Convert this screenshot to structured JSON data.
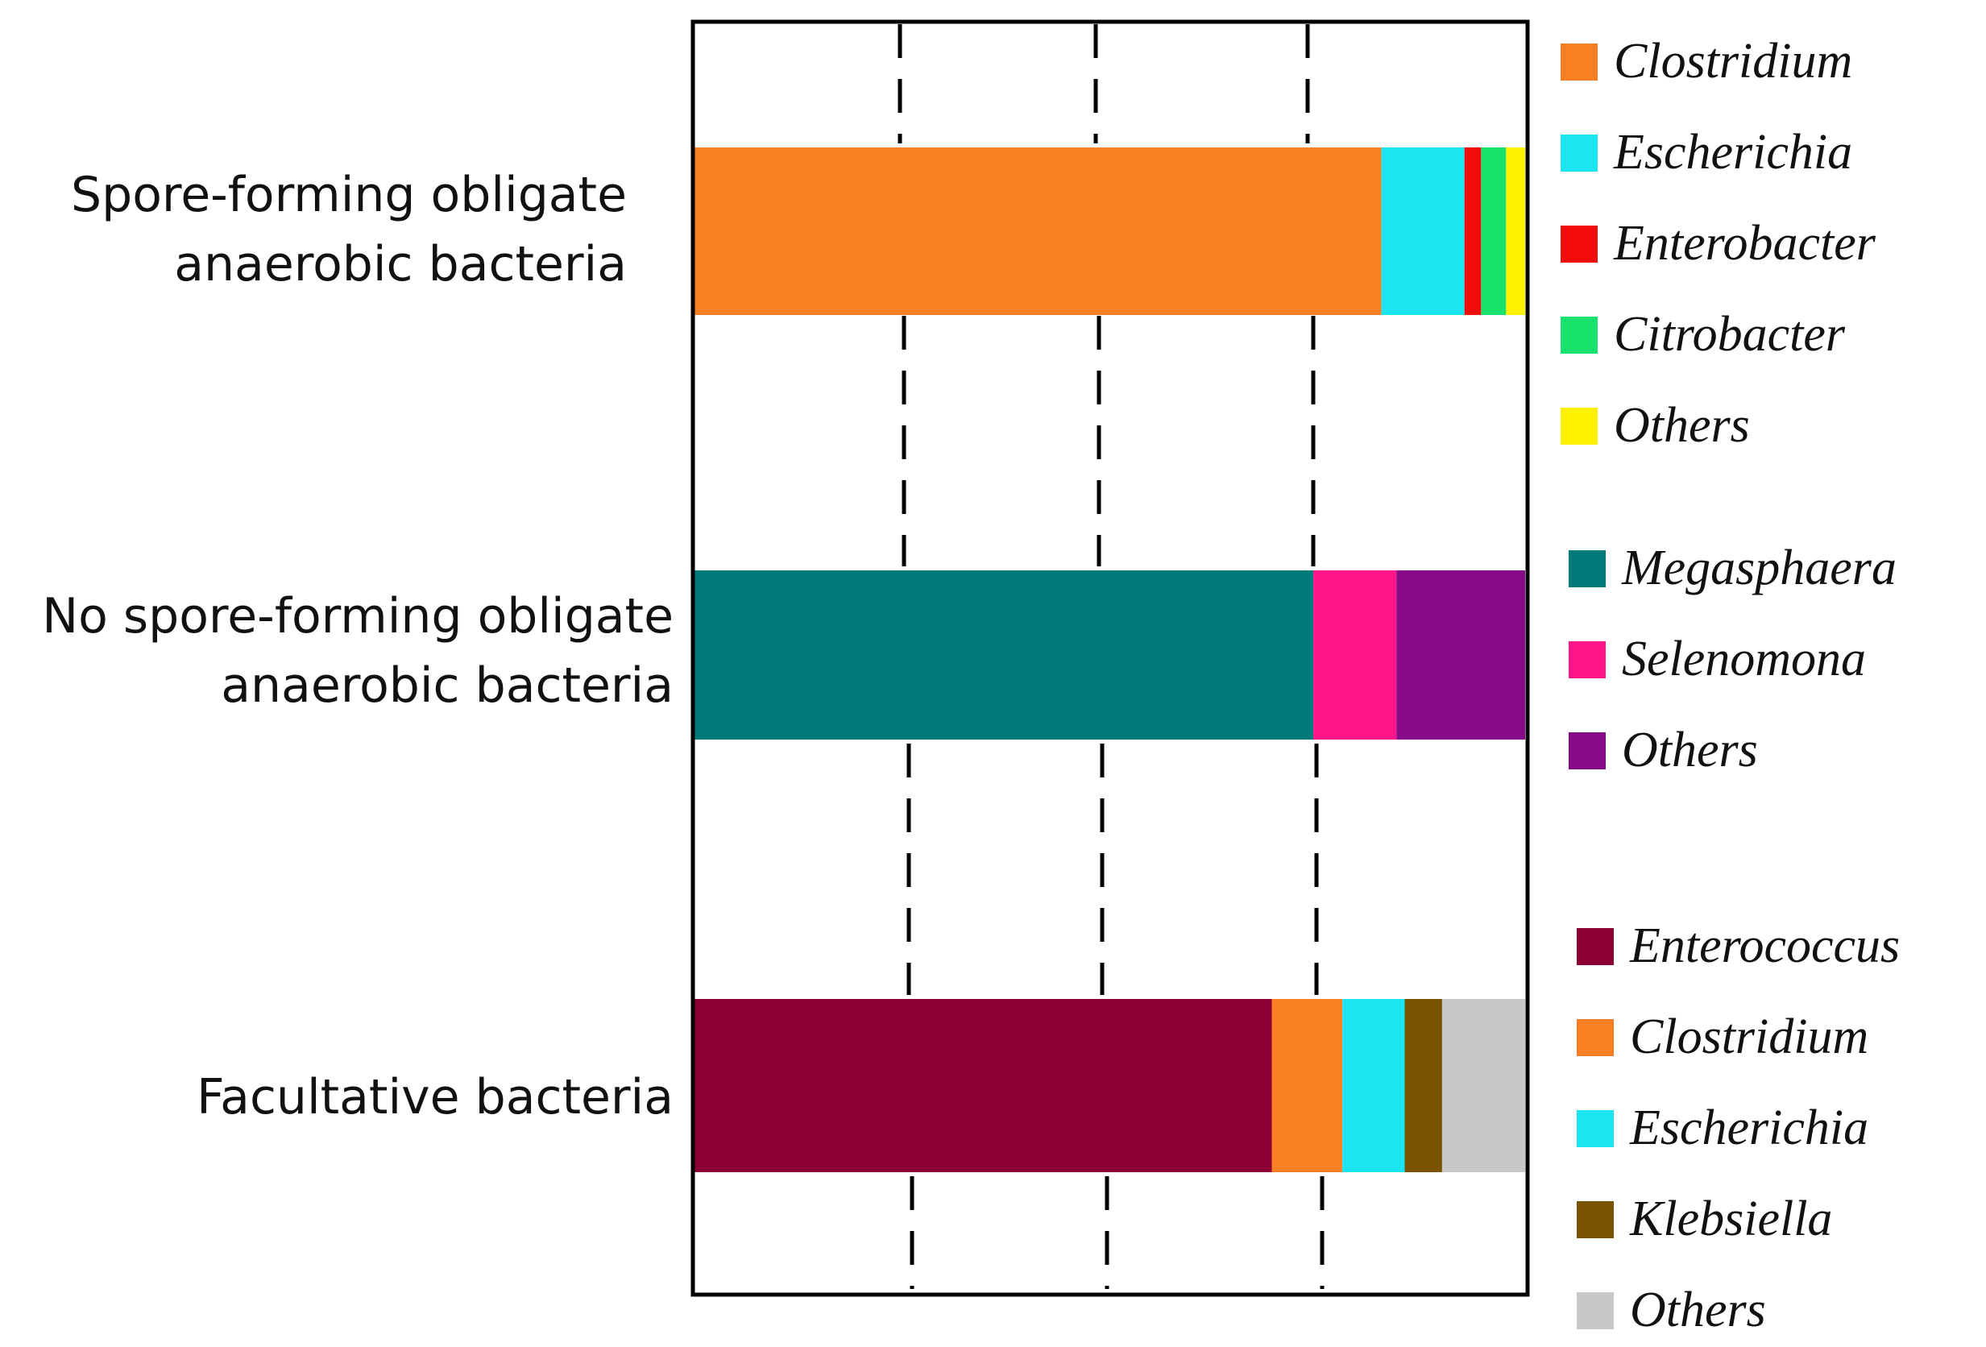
{
  "chart_data": {
    "type": "bar",
    "orientation": "horizontal",
    "stacked": true,
    "normalized": true,
    "title": "",
    "xlabel": "",
    "ylabel": "",
    "xlim": [
      0,
      100
    ],
    "grid": "vertical dashed",
    "groups": [
      {
        "label_lines": [
          "Spore-forming obligate",
          "anaerobic bacteria"
        ],
        "series": [
          {
            "name": "Clostridium",
            "value": 82.7,
            "color": "#F97F22"
          },
          {
            "name": "Escherichia",
            "value": 10.0,
            "color": "#1AE5F0"
          },
          {
            "name": "Enterobacter",
            "value": 2.0,
            "color": "#F20B0B"
          },
          {
            "name": "Citrobacter",
            "value": 3.0,
            "color": "#19E26C"
          },
          {
            "name": "Others",
            "value": 2.3,
            "color": "#FFF200"
          }
        ]
      },
      {
        "label_lines": [
          "No spore-forming obligate",
          "anaerobic bacteria"
        ],
        "series": [
          {
            "name": "Megasphaera",
            "value": 74.5,
            "color": "#007A7A"
          },
          {
            "name": "Selenomona",
            "value": 10.0,
            "color": "#FF148A"
          },
          {
            "name": "Others",
            "value": 15.5,
            "color": "#870A87"
          }
        ]
      },
      {
        "label_lines": [
          "Facultative bacteria"
        ],
        "series": [
          {
            "name": "Enterococcus",
            "value": 69.5,
            "color": "#8A0033"
          },
          {
            "name": "Clostridium",
            "value": 8.5,
            "color": "#F97F22"
          },
          {
            "name": "Escherichia",
            "value": 7.5,
            "color": "#1AE5F0"
          },
          {
            "name": "Klebsiella",
            "value": 4.5,
            "color": "#7A5200"
          },
          {
            "name": "Others",
            "value": 10.0,
            "color": "#C8C8C8"
          }
        ]
      }
    ]
  }
}
